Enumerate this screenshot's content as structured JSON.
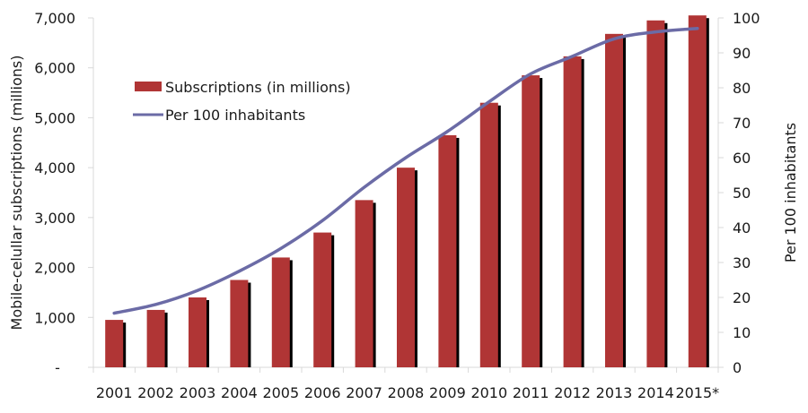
{
  "chart_data": {
    "type": "bar+line",
    "title": "",
    "categories": [
      "2001",
      "2002",
      "2003",
      "2004",
      "2005",
      "2006",
      "2007",
      "2008",
      "2009",
      "2010",
      "2011",
      "2012",
      "2013",
      "2014",
      "2015*"
    ],
    "series": [
      {
        "name": "Subscriptions (in millions)",
        "type": "bar",
        "axis": "left",
        "color": "#b03535",
        "values": [
          950,
          1150,
          1400,
          1750,
          2200,
          2700,
          3350,
          4000,
          4650,
          5300,
          5850,
          6230,
          6680,
          6950,
          7050
        ]
      },
      {
        "name": "Per 100 inhabitants",
        "type": "line",
        "axis": "right",
        "color": "#6b6ba6",
        "values": [
          15.5,
          18,
          22,
          27.5,
          34,
          42,
          51.5,
          60,
          67.5,
          76,
          84,
          89,
          94,
          96,
          97
        ]
      }
    ],
    "ylabel": "Mobile-celullar subscriptions  (millions)",
    "y2label": "Per 100 inhabitants",
    "xlabel": "",
    "ylim": [
      0,
      7000
    ],
    "y2lim": [
      0,
      100
    ],
    "yticks": [
      "-",
      "1,000",
      "2,000",
      "3,000",
      "4,000",
      "5,000",
      "6,000",
      "7,000"
    ],
    "y2ticks": [
      "0",
      "10",
      "20",
      "30",
      "40",
      "50",
      "60",
      "70",
      "80",
      "90",
      "100"
    ],
    "grid": false,
    "legend": "top-left",
    "legend_entries": [
      "Subscriptions (in millions)",
      "Per 100 inhabitants"
    ]
  }
}
